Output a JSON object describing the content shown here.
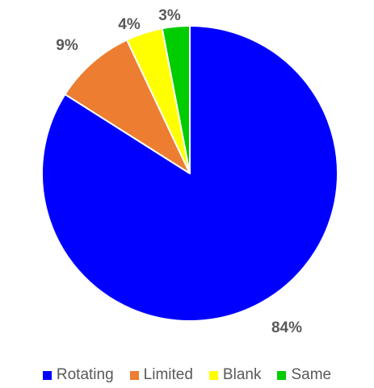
{
  "chart_data": {
    "type": "pie",
    "title": "",
    "start_angle_deg": 0,
    "direction": "clockwise",
    "series": [
      {
        "categories": [
          "Rotating",
          "Limited",
          "Blank",
          "Same"
        ],
        "values": [
          84,
          9,
          4,
          3
        ],
        "labels": [
          "84%",
          "9%",
          "4%",
          "3%"
        ],
        "colors": [
          "#0000ff",
          "#ed7d31",
          "#ffff00",
          "#00cc00"
        ]
      }
    ],
    "legend": {
      "placement": "bottom",
      "entries": [
        "Rotating",
        "Limited",
        "Blank",
        "Same"
      ]
    },
    "slice_border_color": "#ffffff",
    "label_color": "#595959"
  }
}
